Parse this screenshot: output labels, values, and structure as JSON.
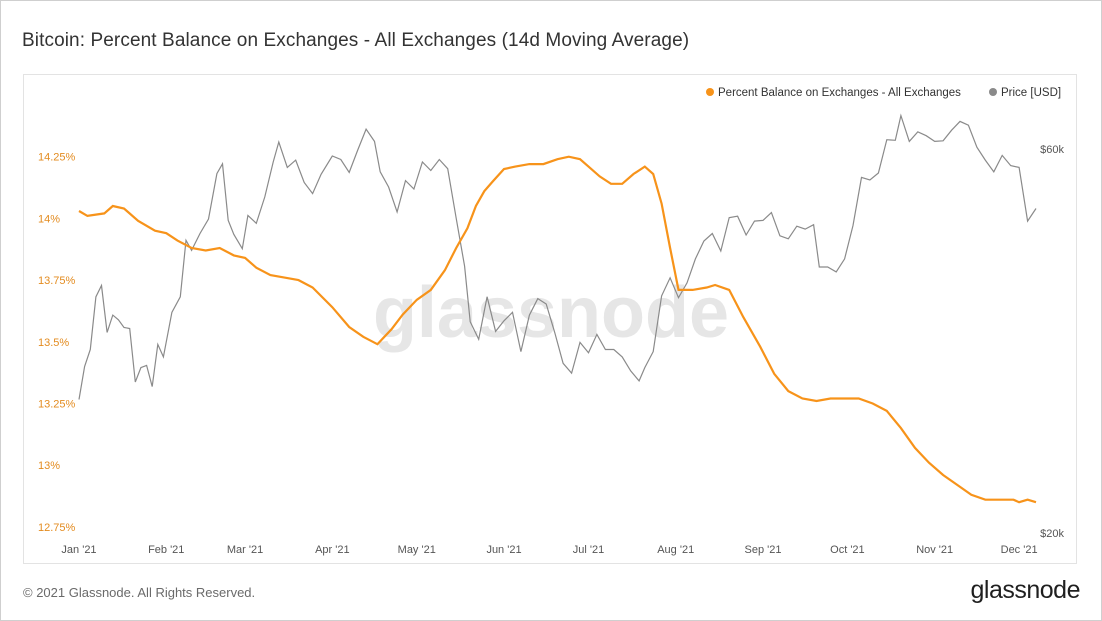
{
  "title": "Bitcoin: Percent Balance on Exchanges - All Exchanges (14d Moving Average)",
  "footer": {
    "copyright": "© 2021 Glassnode. All Rights Reserved.",
    "logo": "glassnode"
  },
  "watermark": "glassnode",
  "colors": {
    "balance": "#f7931a",
    "price": "#8a8a8a",
    "left_axis_text": "#e38b1f",
    "text": "#555555"
  },
  "chart_data": {
    "type": "line",
    "legend": [
      {
        "label": "Percent Balance on Exchanges - All Exchanges",
        "color": "#f7931a"
      },
      {
        "label": "Price [USD]",
        "color": "#8a8a8a"
      }
    ],
    "legend_position": "top-right",
    "x_ticks": [
      "Jan '21",
      "Feb '21",
      "Mar '21",
      "Apr '21",
      "May '21",
      "Jun '21",
      "Jul '21",
      "Aug '21",
      "Sep '21",
      "Oct '21",
      "Nov '21",
      "Dec '21"
    ],
    "x_range": [
      "2021-01-01",
      "2021-12-07"
    ],
    "y_left": {
      "label": "",
      "ticks": [
        "14.25%",
        "14%",
        "13.75%",
        "13.5%",
        "13.25%",
        "13%",
        "12.75%"
      ],
      "tick_values": [
        14.25,
        14.0,
        13.75,
        13.5,
        13.25,
        13.0,
        12.75
      ],
      "range": [
        12.725,
        14.5
      ]
    },
    "y_right": {
      "label": "",
      "ticks": [
        "$60k",
        "$20k"
      ],
      "tick_values": [
        60000,
        20000
      ],
      "scale": "log",
      "range": [
        20000,
        70000
      ]
    },
    "grid": false,
    "series": [
      {
        "name": "Percent Balance on Exchanges - All Exchanges",
        "axis": "left",
        "x": [
          "2021-01-01",
          "2021-01-04",
          "2021-01-10",
          "2021-01-13",
          "2021-01-17",
          "2021-01-22",
          "2021-01-28",
          "2021-02-01",
          "2021-02-05",
          "2021-02-10",
          "2021-02-15",
          "2021-02-20",
          "2021-02-25",
          "2021-03-01",
          "2021-03-05",
          "2021-03-10",
          "2021-03-15",
          "2021-03-20",
          "2021-03-25",
          "2021-04-01",
          "2021-04-07",
          "2021-04-12",
          "2021-04-17",
          "2021-04-22",
          "2021-04-26",
          "2021-05-01",
          "2021-05-06",
          "2021-05-11",
          "2021-05-15",
          "2021-05-19",
          "2021-05-22",
          "2021-05-25",
          "2021-05-28",
          "2021-06-01",
          "2021-06-05",
          "2021-06-10",
          "2021-06-15",
          "2021-06-20",
          "2021-06-24",
          "2021-06-28",
          "2021-07-01",
          "2021-07-05",
          "2021-07-09",
          "2021-07-13",
          "2021-07-17",
          "2021-07-21",
          "2021-07-24",
          "2021-07-27",
          "2021-07-30",
          "2021-08-02",
          "2021-08-07",
          "2021-08-12",
          "2021-08-15",
          "2021-08-20",
          "2021-08-25",
          "2021-08-31",
          "2021-09-05",
          "2021-09-10",
          "2021-09-15",
          "2021-09-20",
          "2021-09-25",
          "2021-09-30",
          "2021-10-05",
          "2021-10-10",
          "2021-10-15",
          "2021-10-20",
          "2021-10-25",
          "2021-10-30",
          "2021-11-04",
          "2021-11-09",
          "2021-11-14",
          "2021-11-19",
          "2021-11-24",
          "2021-11-29",
          "2021-12-01",
          "2021-12-04",
          "2021-12-07"
        ],
        "y": [
          14.03,
          14.01,
          14.02,
          14.05,
          14.04,
          13.99,
          13.95,
          13.94,
          13.91,
          13.88,
          13.87,
          13.88,
          13.85,
          13.84,
          13.8,
          13.77,
          13.76,
          13.75,
          13.72,
          13.64,
          13.56,
          13.52,
          13.49,
          13.55,
          13.61,
          13.67,
          13.71,
          13.79,
          13.88,
          13.96,
          14.05,
          14.11,
          14.15,
          14.2,
          14.21,
          14.22,
          14.22,
          14.24,
          14.25,
          14.24,
          14.21,
          14.17,
          14.14,
          14.14,
          14.18,
          14.21,
          14.18,
          14.06,
          13.88,
          13.71,
          13.71,
          13.72,
          13.73,
          13.71,
          13.6,
          13.48,
          13.37,
          13.3,
          13.27,
          13.26,
          13.27,
          13.27,
          13.27,
          13.25,
          13.22,
          13.15,
          13.07,
          13.01,
          12.96,
          12.92,
          12.88,
          12.86,
          12.86,
          12.86,
          12.85,
          12.86,
          12.85
        ]
      },
      {
        "name": "Price [USD]",
        "axis": "right",
        "x": [
          "2021-01-01",
          "2021-01-03",
          "2021-01-05",
          "2021-01-07",
          "2021-01-09",
          "2021-01-11",
          "2021-01-13",
          "2021-01-15",
          "2021-01-17",
          "2021-01-19",
          "2021-01-21",
          "2021-01-23",
          "2021-01-25",
          "2021-01-27",
          "2021-01-29",
          "2021-01-31",
          "2021-02-03",
          "2021-02-06",
          "2021-02-08",
          "2021-02-10",
          "2021-02-13",
          "2021-02-16",
          "2021-02-19",
          "2021-02-21",
          "2021-02-23",
          "2021-02-25",
          "2021-02-28",
          "2021-03-02",
          "2021-03-05",
          "2021-03-08",
          "2021-03-11",
          "2021-03-13",
          "2021-03-16",
          "2021-03-19",
          "2021-03-22",
          "2021-03-25",
          "2021-03-28",
          "2021-04-01",
          "2021-04-04",
          "2021-04-07",
          "2021-04-10",
          "2021-04-13",
          "2021-04-16",
          "2021-04-18",
          "2021-04-21",
          "2021-04-24",
          "2021-04-27",
          "2021-04-30",
          "2021-05-03",
          "2021-05-06",
          "2021-05-09",
          "2021-05-12",
          "2021-05-15",
          "2021-05-18",
          "2021-05-20",
          "2021-05-23",
          "2021-05-26",
          "2021-05-29",
          "2021-06-01",
          "2021-06-04",
          "2021-06-07",
          "2021-06-10",
          "2021-06-13",
          "2021-06-16",
          "2021-06-19",
          "2021-06-22",
          "2021-06-25",
          "2021-06-28",
          "2021-07-01",
          "2021-07-04",
          "2021-07-07",
          "2021-07-10",
          "2021-07-13",
          "2021-07-16",
          "2021-07-19",
          "2021-07-21",
          "2021-07-24",
          "2021-07-27",
          "2021-07-30",
          "2021-08-02",
          "2021-08-05",
          "2021-08-08",
          "2021-08-11",
          "2021-08-14",
          "2021-08-17",
          "2021-08-20",
          "2021-08-23",
          "2021-08-26",
          "2021-08-29",
          "2021-09-01",
          "2021-09-04",
          "2021-09-07",
          "2021-09-10",
          "2021-09-13",
          "2021-09-16",
          "2021-09-19",
          "2021-09-21",
          "2021-09-24",
          "2021-09-27",
          "2021-09-30",
          "2021-10-03",
          "2021-10-06",
          "2021-10-09",
          "2021-10-12",
          "2021-10-15",
          "2021-10-18",
          "2021-10-20",
          "2021-10-23",
          "2021-10-26",
          "2021-10-29",
          "2021-11-01",
          "2021-11-04",
          "2021-11-07",
          "2021-11-10",
          "2021-11-13",
          "2021-11-16",
          "2021-11-19",
          "2021-11-22",
          "2021-11-25",
          "2021-11-28",
          "2021-12-01",
          "2021-12-04",
          "2021-12-07"
        ],
        "y": [
          29300,
          32200,
          33800,
          39300,
          40600,
          35500,
          37300,
          36800,
          36000,
          35900,
          30800,
          32100,
          32300,
          30400,
          34300,
          33100,
          37600,
          39300,
          46200,
          44900,
          47100,
          49100,
          55900,
          57500,
          48900,
          47000,
          45100,
          49600,
          48500,
          52300,
          57800,
          61200,
          56900,
          58100,
          54500,
          52800,
          55800,
          58800,
          58200,
          56100,
          59800,
          63500,
          61300,
          56200,
          53800,
          50100,
          54800,
          53500,
          57800,
          56400,
          58200,
          56700,
          49200,
          42900,
          36600,
          34800,
          39300,
          35600,
          36700,
          37600,
          33600,
          37300,
          39100,
          38500,
          35500,
          32500,
          31600,
          34500,
          33500,
          35300,
          33800,
          33800,
          33100,
          31800,
          30900,
          32100,
          33600,
          39400,
          41500,
          39200,
          40900,
          43800,
          46100,
          47100,
          44800,
          49300,
          49500,
          46900,
          48800,
          48900,
          50000,
          46800,
          46400,
          48100,
          47700,
          48300,
          42800,
          42800,
          42200,
          43800,
          48200,
          55300,
          54900,
          56000,
          61600,
          61500,
          66000,
          61300,
          63000,
          62300,
          61300,
          61400,
          63300,
          64900,
          64200,
          60300,
          58100,
          56200,
          58900,
          57200,
          56900,
          48800,
          50600
        ]
      }
    ]
  }
}
